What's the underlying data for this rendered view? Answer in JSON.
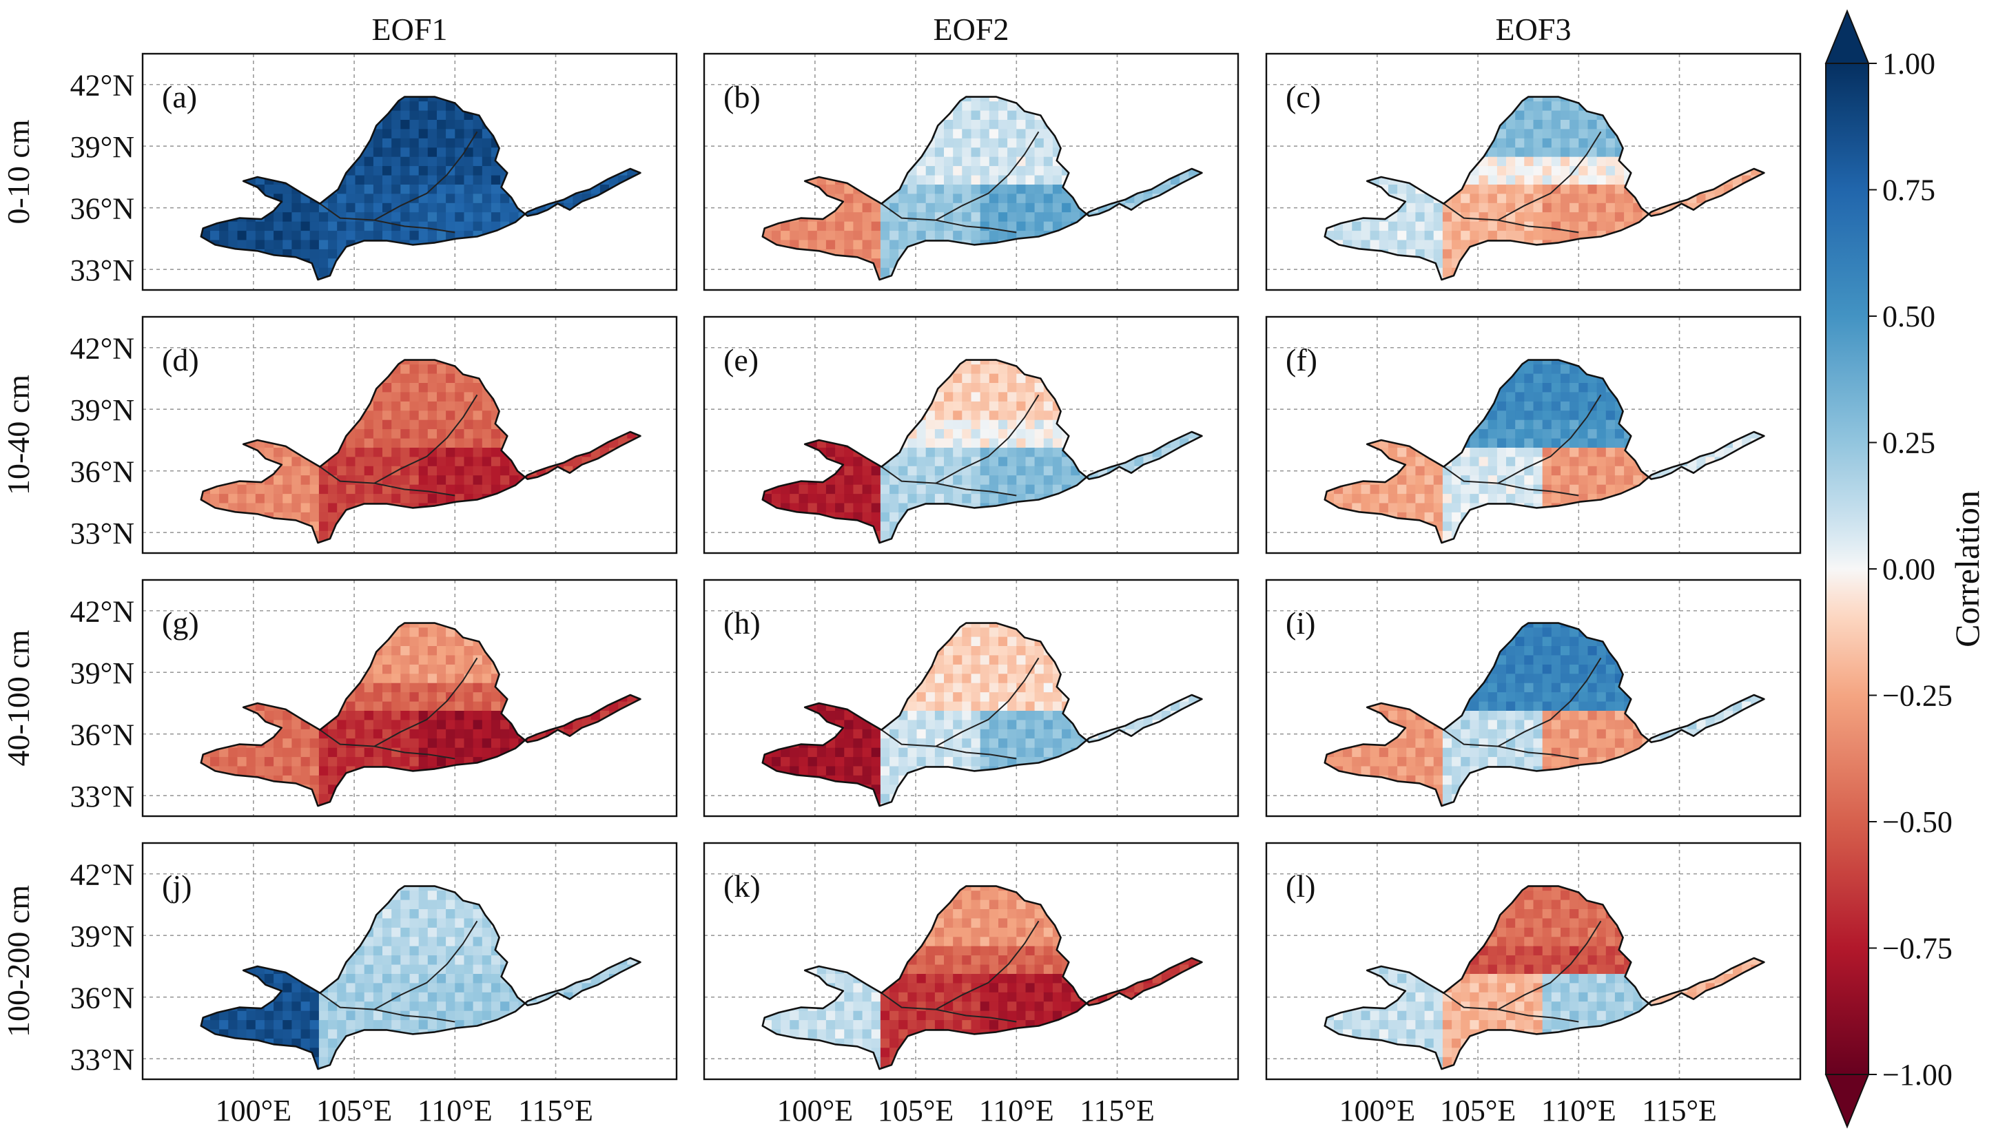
{
  "chart_data": {
    "type": "heatmap",
    "kind": "spatial correlation maps (3 EOF modes x 4 soil layers)",
    "column_titles": [
      "EOF1",
      "EOF2",
      "EOF3"
    ],
    "row_labels": [
      "0-10 cm",
      "10-40 cm",
      "40-100 cm",
      "100-200 cm"
    ],
    "lat_ticks": [
      "42°N",
      "39°N",
      "36°N",
      "33°N"
    ],
    "lat_values": [
      42,
      39,
      36,
      33
    ],
    "lon_ticks": [
      "100°E",
      "105°E",
      "110°E",
      "115°E"
    ],
    "lon_values": [
      100,
      105,
      110,
      115
    ],
    "lon_range": [
      94.5,
      121
    ],
    "lat_range": [
      32,
      43.5
    ],
    "colorbar": {
      "label": "Correlation",
      "ticks": [
        "1.00",
        "0.75",
        "0.50",
        "0.25",
        "0.00",
        "−0.25",
        "−0.50",
        "−0.75",
        "−1.00"
      ],
      "tick_values": [
        1,
        0.75,
        0.5,
        0.25,
        0,
        -0.25,
        -0.5,
        -0.75,
        -1
      ],
      "range": [
        -1,
        1
      ],
      "colormap": "RdBu",
      "extend": "both"
    },
    "panels": [
      {
        "label": "(a)",
        "eof": "EOF1",
        "layer": "0-10 cm",
        "west": 0.88,
        "center_north": 0.85,
        "south_east": 0.78,
        "north": 0.88
      },
      {
        "label": "(b)",
        "eof": "EOF2",
        "layer": "0-10 cm",
        "west": -0.35,
        "center_north": 0.08,
        "south_east": 0.4,
        "north": 0.1
      },
      {
        "label": "(c)",
        "eof": "EOF3",
        "layer": "0-10 cm",
        "west": 0.1,
        "center_north": -0.12,
        "south_east": -0.3,
        "north": 0.3
      },
      {
        "label": "(d)",
        "eof": "EOF1",
        "layer": "10-40 cm",
        "west": -0.35,
        "center_north": -0.5,
        "south_east": -0.72,
        "north": -0.45
      },
      {
        "label": "(e)",
        "eof": "EOF2",
        "layer": "10-40 cm",
        "west": -0.75,
        "center_north": 0.05,
        "south_east": 0.3,
        "north": -0.12
      },
      {
        "label": "(f)",
        "eof": "EOF3",
        "layer": "10-40 cm",
        "west": -0.25,
        "center_north": 0.45,
        "south_east": -0.3,
        "north": 0.55
      },
      {
        "label": "(g)",
        "eof": "EOF1",
        "layer": "40-100 cm",
        "west": -0.45,
        "center_north": -0.55,
        "south_east": -0.8,
        "north": -0.3
      },
      {
        "label": "(h)",
        "eof": "EOF2",
        "layer": "40-100 cm",
        "west": -0.8,
        "center_north": -0.1,
        "south_east": 0.3,
        "north": -0.12
      },
      {
        "label": "(i)",
        "eof": "EOF3",
        "layer": "40-100 cm",
        "west": -0.3,
        "center_north": 0.55,
        "south_east": -0.3,
        "north": 0.6
      },
      {
        "label": "(j)",
        "eof": "EOF1",
        "layer": "100-200 cm",
        "west": 0.85,
        "center_north": 0.18,
        "south_east": 0.22,
        "north": 0.15
      },
      {
        "label": "(k)",
        "eof": "EOF2",
        "layer": "100-200 cm",
        "west": 0.12,
        "center_north": -0.55,
        "south_east": -0.75,
        "north": -0.3
      },
      {
        "label": "(l)",
        "eof": "EOF3",
        "layer": "100-200 cm",
        "west": 0.12,
        "center_north": -0.6,
        "south_east": 0.2,
        "north": -0.45
      }
    ]
  }
}
